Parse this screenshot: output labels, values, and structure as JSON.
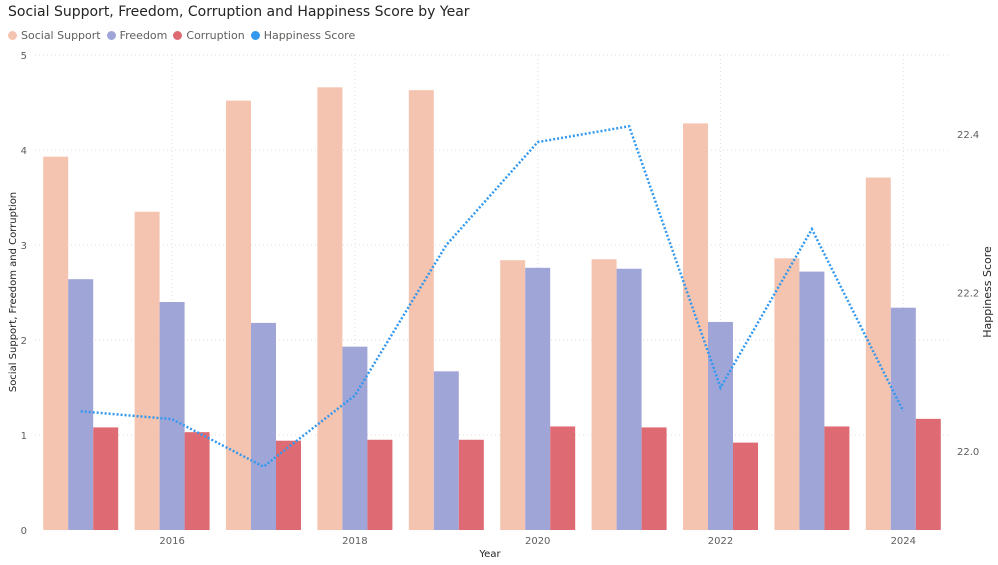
{
  "chart_data": {
    "type": "bar",
    "title": "Social Support, Freedom, Corruption and Happiness Score by Year",
    "xlabel": "Year",
    "ylabel": "Social Support, Freedom and Corruption",
    "y2label": "Happiness Score",
    "x": [
      2015,
      2016,
      2017,
      2018,
      2019,
      2020,
      2021,
      2022,
      2023,
      2024
    ],
    "x_ticks": [
      "2016",
      "2018",
      "2020",
      "2022",
      "2024"
    ],
    "ylim": [
      0,
      5
    ],
    "y_ticks": [
      "0",
      "1",
      "2",
      "3",
      "4",
      "5"
    ],
    "y2lim": [
      21.9,
      22.5
    ],
    "y2_ticks": [
      "22.0",
      "22.2",
      "22.4"
    ],
    "grid": true,
    "legend_position": "top-left",
    "series": [
      {
        "name": "Social Support",
        "kind": "bar",
        "axis": "left",
        "color": "#f5c4b0",
        "values": [
          3.93,
          3.35,
          4.52,
          4.66,
          4.63,
          2.84,
          2.85,
          4.28,
          2.86,
          3.71
        ]
      },
      {
        "name": "Freedom",
        "kind": "bar",
        "axis": "left",
        "color": "#a0a5d8",
        "values": [
          2.64,
          2.4,
          2.18,
          1.93,
          1.67,
          2.76,
          2.75,
          2.19,
          2.72,
          2.34
        ]
      },
      {
        "name": "Corruption",
        "kind": "bar",
        "axis": "left",
        "color": "#de6b74",
        "values": [
          1.08,
          1.03,
          0.94,
          0.95,
          0.95,
          1.09,
          1.08,
          0.92,
          1.09,
          1.17
        ]
      },
      {
        "name": "Happiness Score",
        "kind": "line",
        "axis": "right",
        "color": "#3399ee",
        "values": [
          22.05,
          22.04,
          21.98,
          22.07,
          22.26,
          22.39,
          22.41,
          22.08,
          22.28,
          22.05
        ]
      }
    ]
  }
}
